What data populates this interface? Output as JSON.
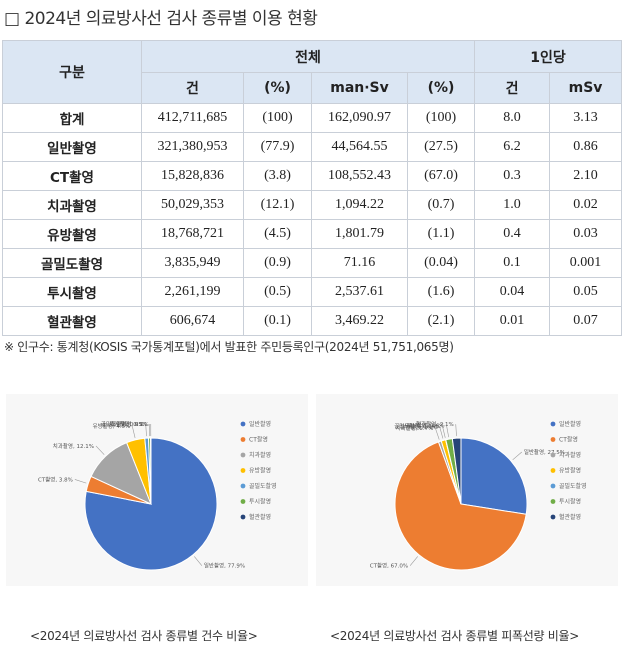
{
  "title": "□ 2024년 의료방사선 검사 종류별 이용 현황",
  "table": {
    "header_rowlabel": "구분",
    "group_total": "전체",
    "group_percapita": "1인당",
    "subheaders": [
      "건",
      "(%)",
      "man·Sv",
      "(%)",
      "건",
      "mSv"
    ],
    "rows": [
      {
        "label": "합계",
        "cells": [
          "412,711,685",
          "(100)",
          "162,090.97",
          "(100)",
          "8.0",
          "3.13"
        ]
      },
      {
        "label": "일반촬영",
        "cells": [
          "321,380,953",
          "(77.9)",
          "44,564.55",
          "(27.5)",
          "6.2",
          "0.86"
        ]
      },
      {
        "label": "CT촬영",
        "cells": [
          "15,828,836",
          "(3.8)",
          "108,552.43",
          "(67.0)",
          "0.3",
          "2.10"
        ]
      },
      {
        "label": "치과촬영",
        "cells": [
          "50,029,353",
          "(12.1)",
          "1,094.22",
          "(0.7)",
          "1.0",
          "0.02"
        ]
      },
      {
        "label": "유방촬영",
        "cells": [
          "18,768,721",
          "(4.5)",
          "1,801.79",
          "(1.1)",
          "0.4",
          "0.03"
        ]
      },
      {
        "label": "골밀도촬영",
        "cells": [
          "3,835,949",
          "(0.9)",
          "71.16",
          "(0.04)",
          "0.1",
          "0.001"
        ]
      },
      {
        "label": "투시촬영",
        "cells": [
          "2,261,199",
          "(0.5)",
          "2,537.61",
          "(1.6)",
          "0.04",
          "0.05"
        ]
      },
      {
        "label": "혈관촬영",
        "cells": [
          "606,674",
          "(0.1)",
          "3,469.22",
          "(2.1)",
          "0.01",
          "0.07"
        ]
      }
    ]
  },
  "note": "※ 인구수: 통계청(KOSIS 국가통계포털)에서 발표한 주민등록인구(2024년  51,751,065명)",
  "captions": {
    "chart1": "<2024년 의료방사선 검사 종류별 건수 비율>",
    "chart2": "<2024년 의료방사선 검사 종류별 피폭선량 비율>"
  },
  "chart_data": [
    {
      "type": "pie",
      "categories": [
        "일반촬영",
        "CT촬영",
        "치과촬영",
        "유방촬영",
        "골밀도촬영",
        "투시촬영",
        "혈관촬영"
      ],
      "values": [
        77.9,
        3.8,
        12.1,
        4.5,
        0.9,
        0.5,
        0.1
      ],
      "labels": [
        "일반촬영, 77.9%",
        "CT촬영, 3.8%",
        "치과촬영, 12.1%",
        "유방촬영, 4.5%",
        "골밀도촬영, 0.9%",
        "투시촬영, 0.5%",
        "혈관촬영, 0.1%"
      ],
      "colors": [
        "#4472c4",
        "#ed7d31",
        "#a5a5a5",
        "#ffc000",
        "#5b9bd5",
        "#70ad47",
        "#264478"
      ],
      "legend": "right"
    },
    {
      "type": "pie",
      "categories": [
        "일반촬영",
        "CT촬영",
        "치과촬영",
        "유방촬영",
        "골밀도촬영",
        "투시촬영",
        "혈관촬영"
      ],
      "values": [
        27.5,
        67.0,
        0.7,
        1.1,
        0.04,
        1.6,
        2.1
      ],
      "labels": [
        "일반촬영, 27.5%",
        "CT촬영, 67.0%",
        "치과촬영, 0.7%",
        "유방촬영, 1.1%",
        "골밀도촬영, 0.04%",
        "투시촬영, 1.6%",
        "혈관촬영, 2.1%"
      ],
      "colors": [
        "#4472c4",
        "#ed7d31",
        "#a5a5a5",
        "#ffc000",
        "#5b9bd5",
        "#70ad47",
        "#264478"
      ],
      "legend": "right"
    }
  ]
}
